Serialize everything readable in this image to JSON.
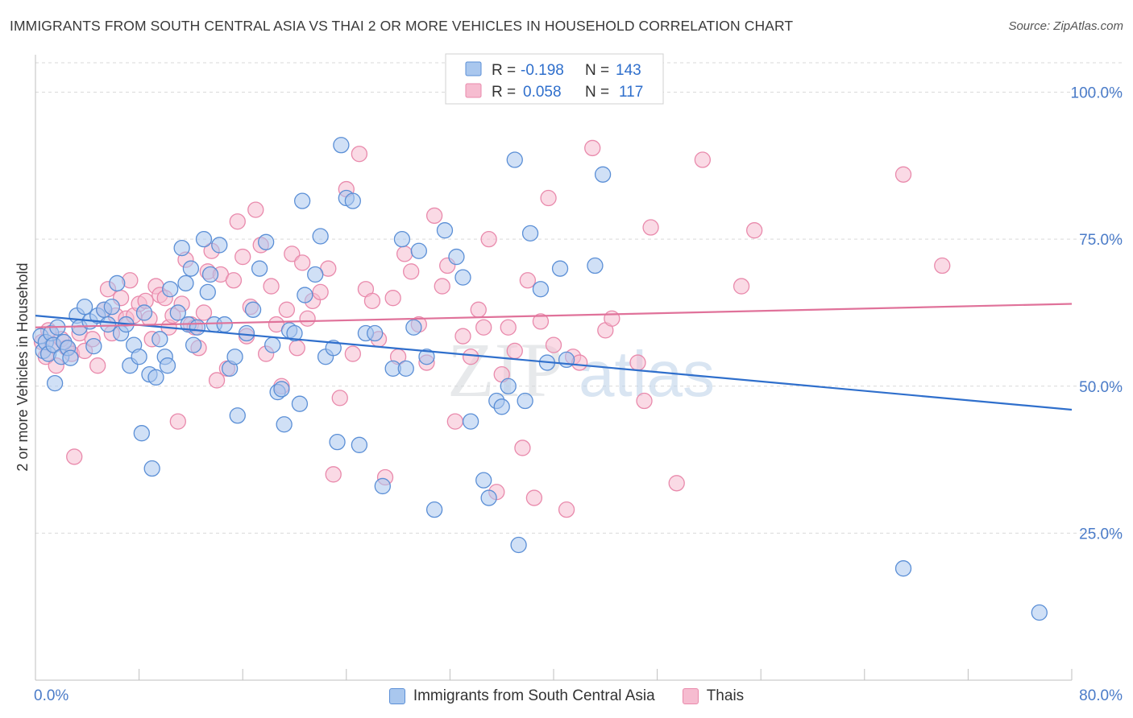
{
  "header": {
    "title": "IMMIGRANTS FROM SOUTH CENTRAL ASIA VS THAI 2 OR MORE VEHICLES IN HOUSEHOLD CORRELATION CHART",
    "source": "Source: ZipAtlas.com"
  },
  "watermark": {
    "zip": "ZIP",
    "atlas": "atlas"
  },
  "legend_top": [
    {
      "r_label": "R =",
      "r_value": "-0.198",
      "n_label": "N =",
      "n_value": "143"
    },
    {
      "r_label": "R =",
      "r_value": "0.058",
      "n_label": "N =",
      "n_value": "117"
    }
  ],
  "colors": {
    "blue_fill": "#a9c7ee",
    "blue_stroke": "#5b8fd6",
    "blue_line": "#2f6fcc",
    "pink_fill": "#f6bcd0",
    "pink_stroke": "#e98aac",
    "pink_line": "#e0729a",
    "axis_text": "#4a7bc8",
    "grid": "#d9d9d9"
  },
  "chart_data": {
    "type": "scatter",
    "title": "IMMIGRANTS FROM SOUTH CENTRAL ASIA VS THAI 2 OR MORE VEHICLES IN HOUSEHOLD CORRELATION CHART",
    "xlabel": "",
    "ylabel": "2 or more Vehicles in Household",
    "xlim": [
      0,
      80
    ],
    "ylim": [
      0,
      105
    ],
    "x_tick_labels": [
      "0.0%",
      "80.0%"
    ],
    "y_ticks": [
      25,
      50,
      75,
      100
    ],
    "y_tick_labels": [
      "25.0%",
      "50.0%",
      "75.0%",
      "100.0%"
    ],
    "grid": "horizontal dashed",
    "legend_placement": "top-center and bottom",
    "series": [
      {
        "name": "Immigrants from South Central Asia",
        "r": -0.198,
        "n": 143,
        "trend": [
          [
            0,
            62.0
          ],
          [
            80,
            46.0
          ]
        ],
        "points": [
          [
            0.4,
            58.5
          ],
          [
            0.6,
            56.0
          ],
          [
            0.8,
            57.5
          ],
          [
            1.0,
            55.5
          ],
          [
            1.2,
            59.0
          ],
          [
            1.4,
            57.0
          ],
          [
            1.5,
            50.5
          ],
          [
            1.7,
            60.0
          ],
          [
            2.0,
            55.0
          ],
          [
            2.2,
            57.5
          ],
          [
            2.5,
            56.5
          ],
          [
            2.7,
            54.8
          ],
          [
            3.2,
            62.0
          ],
          [
            3.4,
            60.0
          ],
          [
            3.8,
            63.5
          ],
          [
            4.2,
            61.0
          ],
          [
            4.5,
            56.8
          ],
          [
            4.8,
            62.0
          ],
          [
            5.3,
            63.0
          ],
          [
            5.6,
            60.5
          ],
          [
            5.9,
            63.5
          ],
          [
            6.3,
            67.5
          ],
          [
            6.6,
            59.0
          ],
          [
            7.0,
            60.5
          ],
          [
            7.3,
            53.5
          ],
          [
            7.6,
            57.0
          ],
          [
            8.0,
            55.0
          ],
          [
            8.2,
            42.0
          ],
          [
            8.4,
            62.5
          ],
          [
            8.8,
            52.0
          ],
          [
            9.0,
            36.0
          ],
          [
            9.3,
            51.5
          ],
          [
            9.6,
            58.0
          ],
          [
            10.0,
            55.0
          ],
          [
            10.2,
            53.5
          ],
          [
            10.4,
            66.5
          ],
          [
            11.0,
            62.5
          ],
          [
            11.3,
            73.5
          ],
          [
            11.6,
            67.5
          ],
          [
            11.8,
            60.5
          ],
          [
            12.0,
            70.0
          ],
          [
            12.2,
            57.0
          ],
          [
            12.5,
            60.0
          ],
          [
            13.0,
            75.0
          ],
          [
            13.3,
            66.0
          ],
          [
            13.5,
            69.0
          ],
          [
            13.8,
            60.5
          ],
          [
            14.2,
            74.0
          ],
          [
            14.6,
            60.5
          ],
          [
            15.0,
            53.0
          ],
          [
            15.4,
            55.0
          ],
          [
            15.6,
            45.0
          ],
          [
            16.3,
            59.0
          ],
          [
            16.8,
            63.0
          ],
          [
            17.3,
            70.0
          ],
          [
            17.8,
            74.5
          ],
          [
            18.3,
            57.0
          ],
          [
            18.7,
            49.0
          ],
          [
            19.0,
            49.5
          ],
          [
            19.2,
            43.5
          ],
          [
            19.6,
            59.5
          ],
          [
            20.0,
            59.0
          ],
          [
            20.4,
            47.0
          ],
          [
            20.6,
            81.5
          ],
          [
            20.8,
            65.5
          ],
          [
            21.6,
            69.0
          ],
          [
            22.0,
            75.5
          ],
          [
            22.4,
            55.0
          ],
          [
            23.0,
            56.5
          ],
          [
            23.3,
            40.5
          ],
          [
            23.6,
            91.0
          ],
          [
            24.0,
            82.0
          ],
          [
            24.5,
            81.5
          ],
          [
            25.0,
            40.0
          ],
          [
            25.5,
            59.0
          ],
          [
            26.2,
            59.0
          ],
          [
            26.8,
            33.0
          ],
          [
            27.6,
            53.0
          ],
          [
            28.3,
            75.0
          ],
          [
            28.6,
            53.0
          ],
          [
            29.2,
            60.0
          ],
          [
            29.6,
            73.0
          ],
          [
            30.2,
            55.0
          ],
          [
            30.8,
            29.0
          ],
          [
            31.6,
            76.5
          ],
          [
            32.5,
            72.0
          ],
          [
            33.0,
            68.5
          ],
          [
            33.6,
            44.0
          ],
          [
            34.6,
            34.0
          ],
          [
            35.0,
            31.0
          ],
          [
            35.6,
            47.5
          ],
          [
            36.0,
            46.5
          ],
          [
            36.5,
            50.0
          ],
          [
            37.0,
            88.5
          ],
          [
            37.3,
            23.0
          ],
          [
            37.8,
            47.5
          ],
          [
            38.2,
            76.0
          ],
          [
            39.0,
            66.5
          ],
          [
            39.5,
            54.0
          ],
          [
            40.5,
            70.0
          ],
          [
            41.0,
            54.5
          ],
          [
            43.2,
            70.5
          ],
          [
            43.8,
            86.0
          ],
          [
            67.0,
            19.0
          ],
          [
            77.5,
            11.5
          ]
        ]
      },
      {
        "name": "Thais",
        "r": 0.058,
        "n": 117,
        "trend": [
          [
            0,
            60.0
          ],
          [
            80,
            64.0
          ]
        ],
        "points": [
          [
            0.5,
            57.5
          ],
          [
            0.8,
            55.0
          ],
          [
            1.0,
            59.5
          ],
          [
            1.3,
            57.0
          ],
          [
            1.6,
            53.5
          ],
          [
            2.0,
            58.0
          ],
          [
            2.4,
            56.5
          ],
          [
            2.8,
            55.5
          ],
          [
            3.0,
            38.0
          ],
          [
            3.4,
            59.0
          ],
          [
            3.8,
            56.0
          ],
          [
            4.4,
            58.0
          ],
          [
            4.8,
            53.5
          ],
          [
            5.3,
            63.0
          ],
          [
            5.6,
            66.5
          ],
          [
            5.9,
            59.0
          ],
          [
            6.2,
            62.0
          ],
          [
            6.6,
            65.0
          ],
          [
            7.0,
            61.5
          ],
          [
            7.3,
            68.0
          ],
          [
            7.6,
            62.0
          ],
          [
            8.0,
            64.0
          ],
          [
            8.5,
            64.5
          ],
          [
            8.8,
            61.5
          ],
          [
            9.0,
            58.0
          ],
          [
            9.3,
            67.0
          ],
          [
            9.6,
            65.5
          ],
          [
            10.0,
            65.0
          ],
          [
            10.3,
            60.0
          ],
          [
            10.6,
            62.0
          ],
          [
            11.0,
            44.0
          ],
          [
            11.3,
            64.0
          ],
          [
            11.6,
            71.5
          ],
          [
            12.0,
            60.5
          ],
          [
            12.3,
            60.0
          ],
          [
            12.6,
            56.5
          ],
          [
            13.0,
            62.5
          ],
          [
            13.3,
            69.5
          ],
          [
            13.6,
            73.0
          ],
          [
            14.0,
            51.0
          ],
          [
            14.3,
            69.0
          ],
          [
            14.8,
            53.0
          ],
          [
            15.3,
            68.0
          ],
          [
            15.6,
            78.0
          ],
          [
            16.0,
            72.0
          ],
          [
            16.3,
            58.5
          ],
          [
            16.6,
            63.5
          ],
          [
            17.0,
            80.0
          ],
          [
            17.4,
            74.0
          ],
          [
            17.8,
            55.5
          ],
          [
            18.2,
            67.0
          ],
          [
            18.6,
            60.5
          ],
          [
            19.0,
            50.0
          ],
          [
            19.4,
            63.0
          ],
          [
            19.8,
            72.5
          ],
          [
            20.2,
            56.5
          ],
          [
            20.6,
            71.0
          ],
          [
            21.0,
            61.5
          ],
          [
            21.4,
            64.5
          ],
          [
            22.0,
            66.0
          ],
          [
            22.6,
            70.0
          ],
          [
            23.0,
            35.0
          ],
          [
            23.5,
            48.0
          ],
          [
            24.0,
            83.5
          ],
          [
            24.5,
            55.5
          ],
          [
            25.0,
            89.5
          ],
          [
            25.5,
            66.5
          ],
          [
            26.0,
            64.5
          ],
          [
            26.5,
            58.0
          ],
          [
            27.0,
            34.5
          ],
          [
            27.6,
            65.0
          ],
          [
            28.0,
            55.0
          ],
          [
            28.5,
            72.5
          ],
          [
            29.0,
            69.5
          ],
          [
            29.6,
            60.5
          ],
          [
            30.2,
            54.0
          ],
          [
            30.8,
            79.0
          ],
          [
            31.4,
            67.0
          ],
          [
            31.8,
            70.5
          ],
          [
            32.4,
            44.0
          ],
          [
            33.0,
            58.5
          ],
          [
            33.6,
            55.0
          ],
          [
            34.2,
            63.0
          ],
          [
            34.6,
            60.0
          ],
          [
            35.0,
            75.0
          ],
          [
            35.6,
            32.0
          ],
          [
            36.0,
            52.0
          ],
          [
            36.5,
            60.0
          ],
          [
            37.0,
            56.0
          ],
          [
            37.6,
            39.5
          ],
          [
            38.0,
            68.0
          ],
          [
            38.5,
            31.0
          ],
          [
            39.0,
            61.0
          ],
          [
            39.6,
            82.0
          ],
          [
            40.0,
            57.0
          ],
          [
            41.0,
            29.0
          ],
          [
            41.5,
            55.0
          ],
          [
            42.0,
            54.0
          ],
          [
            43.0,
            90.5
          ],
          [
            44.0,
            59.5
          ],
          [
            44.5,
            61.5
          ],
          [
            46.5,
            54.0
          ],
          [
            47.0,
            47.5
          ],
          [
            47.5,
            77.0
          ],
          [
            49.5,
            33.5
          ],
          [
            51.5,
            88.5
          ],
          [
            54.5,
            67.0
          ],
          [
            55.5,
            76.5
          ],
          [
            67.0,
            86.0
          ],
          [
            70.0,
            70.5
          ]
        ]
      }
    ]
  }
}
